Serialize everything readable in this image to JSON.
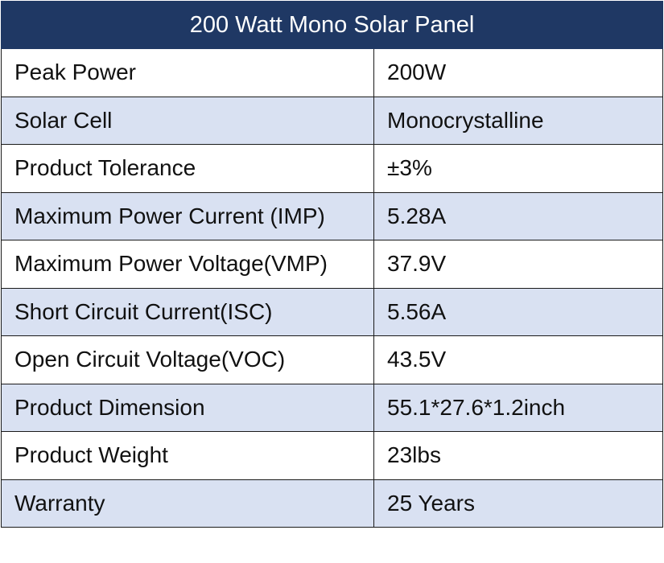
{
  "table": {
    "title": "200 Watt Mono Solar Panel",
    "header_color": "#1f3864",
    "alt_row_color": "#d9e1f2",
    "rows": [
      {
        "label": "Peak Power",
        "value": "200W"
      },
      {
        "label": "Solar Cell",
        "value": "Monocrystalline"
      },
      {
        "label": "Product Tolerance",
        "value": "±3%"
      },
      {
        "label": "Maximum Power Current (IMP)",
        "value": "5.28A"
      },
      {
        "label": "Maximum Power Voltage(VMP)",
        "value": "37.9V"
      },
      {
        "label": "Short Circuit Current(ISC)",
        "value": "5.56A"
      },
      {
        "label": "Open Circuit Voltage(VOC)",
        "value": "43.5V"
      },
      {
        "label": "Product Dimension",
        "value": "55.1*27.6*1.2inch"
      },
      {
        "label": "Product Weight",
        "value": "23lbs"
      },
      {
        "label": "Warranty",
        "value": "25 Years"
      }
    ]
  }
}
